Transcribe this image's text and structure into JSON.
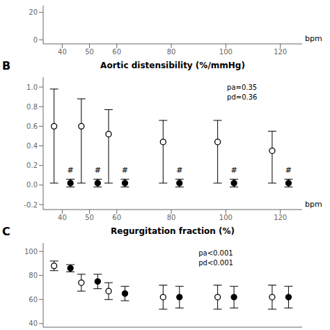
{
  "chart_data": [
    {
      "type": "scatter",
      "xlabel": "bpm",
      "x": [
        40,
        50,
        60,
        80,
        100,
        120
      ],
      "xlim": [
        33,
        128
      ],
      "xticks": [
        40,
        50,
        60,
        80,
        100,
        120
      ],
      "ylim": [
        -3,
        25
      ],
      "yticks": [
        0,
        20
      ],
      "series": []
    },
    {
      "type": "scatter",
      "title": "Aortic distensibility (%/mmHg)",
      "xlabel": "bpm",
      "x": [
        40,
        50,
        60,
        80,
        100,
        120
      ],
      "xlim": [
        33,
        128
      ],
      "xticks": [
        40,
        50,
        60,
        80,
        100,
        120
      ],
      "ylim": [
        -0.25,
        1.1
      ],
      "yticks": [
        -0.2,
        {
          "value": 0,
          "label": "0.0"
        },
        0.2,
        0.4,
        0.6,
        0.8,
        {
          "value": 1,
          "label": "1.0"
        }
      ],
      "series": [
        {
          "marker": "open_circle",
          "color": "#000000",
          "values": [
            0.6,
            0.6,
            0.52,
            0.44,
            0.44,
            0.35
          ],
          "error_low": [
            0.58,
            0.58,
            0.5,
            0.42,
            0.42,
            0.33
          ],
          "error_high": [
            0.38,
            0.28,
            0.25,
            0.22,
            0.22,
            0.2
          ]
        },
        {
          "marker": "filled_circle",
          "color": "#000000",
          "values": [
            0.02,
            0.02,
            0.02,
            0.02,
            0.02,
            0.02
          ],
          "error_low": [
            0.04,
            0.04,
            0.04,
            0.04,
            0.04,
            0.04
          ],
          "error_high": [
            0.04,
            0.04,
            0.04,
            0.04,
            0.04,
            0.04
          ]
        }
      ],
      "annotations": [
        {
          "text": "B",
          "position": "panel"
        },
        {
          "text": "pa=0.35\npd=0.36",
          "position": "top right"
        },
        {
          "text": "#",
          "x": 40,
          "y": 0.13
        },
        {
          "text": "#",
          "x": 50,
          "y": 0.13
        },
        {
          "text": "#",
          "x": 60,
          "y": 0.13
        },
        {
          "text": "#",
          "x": 80,
          "y": 0.13
        },
        {
          "text": "#",
          "x": 100,
          "y": 0.13
        },
        {
          "text": "#",
          "x": 120,
          "y": 0.13
        }
      ]
    },
    {
      "type": "scatter",
      "title": "Regurgitation fraction (%)",
      "tick_labels": "y",
      "x": [
        40,
        50,
        60,
        80,
        100,
        120
      ],
      "xlim": [
        33,
        128
      ],
      "xticks": [
        40,
        50,
        60,
        80,
        100,
        120
      ],
      "ylim": [
        37,
        107
      ],
      "yticks": [
        40,
        60,
        80,
        100
      ],
      "series": [
        {
          "marker": "open_circle",
          "color": "#000000",
          "values": [
            88,
            74,
            67,
            62,
            62,
            62
          ],
          "error_low": [
            4,
            7,
            7,
            10,
            10,
            10
          ],
          "error_high": [
            4,
            7,
            7,
            10,
            10,
            10
          ]
        },
        {
          "marker": "filled_circle",
          "color": "#000000",
          "values": [
            86,
            75,
            65,
            62,
            62,
            62
          ],
          "error_low": [
            3,
            6,
            6,
            9,
            9,
            9
          ],
          "error_high": [
            3,
            6,
            6,
            9,
            9,
            9
          ]
        }
      ],
      "annotations": [
        {
          "text": "C",
          "position": "panel"
        },
        {
          "text": "pa<0.001\npd<0.001",
          "position": "top right"
        }
      ]
    }
  ]
}
